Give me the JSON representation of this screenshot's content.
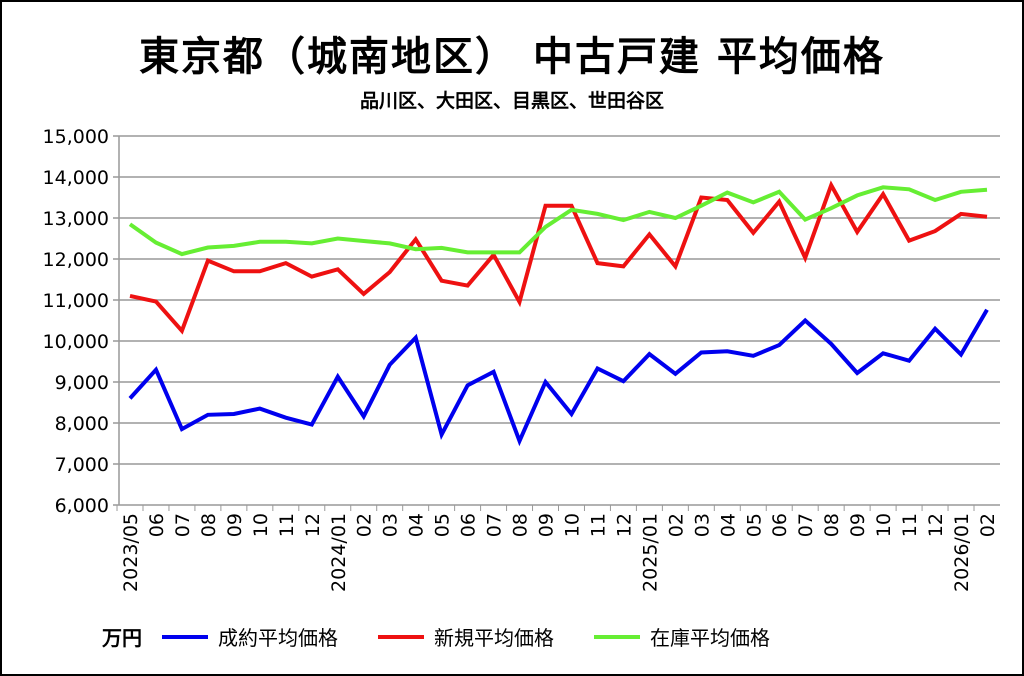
{
  "title": "東京都（城南地区） 中古戸建 平均価格",
  "subtitle": "品川区、大田区、目黒区、世田谷区",
  "chart_data": {
    "type": "line",
    "title": "東京都（城南地区） 中古戸建 平均価格",
    "subtitle": "品川区、大田区、目黒区、世田谷区",
    "unit": "万円",
    "ylim": [
      6000,
      15000
    ],
    "yticks": [
      6000,
      7000,
      8000,
      9000,
      10000,
      11000,
      12000,
      13000,
      14000,
      15000
    ],
    "ytick_labels": [
      "6,000",
      "7,000",
      "8,000",
      "9,000",
      "10,000",
      "11,000",
      "12,000",
      "13,000",
      "14,000",
      "15,000"
    ],
    "grid": true,
    "legend_position": "bottom",
    "categories": [
      "2023/05",
      "06",
      "07",
      "08",
      "09",
      "10",
      "11",
      "12",
      "2024/01",
      "02",
      "03",
      "04",
      "05",
      "06",
      "07",
      "08",
      "09",
      "10",
      "11",
      "12",
      "2025/01",
      "02",
      "03",
      "04",
      "05",
      "06",
      "07",
      "08",
      "09",
      "10",
      "11",
      "12",
      "2026/01",
      "02"
    ],
    "series": [
      {
        "name": "成約平均価格",
        "color": "#0000ee",
        "values": [
          8600,
          9300,
          7850,
          8200,
          8220,
          8350,
          8130,
          7960,
          9130,
          8160,
          9420,
          10080,
          7720,
          8920,
          9250,
          7560,
          9000,
          8220,
          9330,
          9020,
          9680,
          9200,
          9720,
          9750,
          9640,
          9900,
          10500,
          9930,
          9220,
          9700,
          9520,
          10300,
          9670,
          10760
        ]
      },
      {
        "name": "新規平均価格",
        "color": "#ee1111",
        "values": [
          11100,
          10960,
          10250,
          11960,
          11700,
          11700,
          11900,
          11570,
          11750,
          11150,
          11680,
          12480,
          11470,
          11350,
          12100,
          10950,
          13300,
          13300,
          11900,
          11820,
          12600,
          11820,
          13500,
          13440,
          12640,
          13400,
          12030,
          13800,
          12660,
          13580,
          12450,
          12680,
          13100,
          13030
        ]
      },
      {
        "name": "在庫平均価格",
        "color": "#66ee33",
        "values": [
          12850,
          12400,
          12120,
          12280,
          12320,
          12420,
          12420,
          12380,
          12500,
          12440,
          12380,
          12240,
          12270,
          12160,
          12160,
          12160,
          12780,
          13200,
          13100,
          12950,
          13150,
          13000,
          13300,
          13620,
          13380,
          13640,
          12960,
          13240,
          13550,
          13750,
          13700,
          13440,
          13640,
          13690
        ]
      }
    ]
  }
}
